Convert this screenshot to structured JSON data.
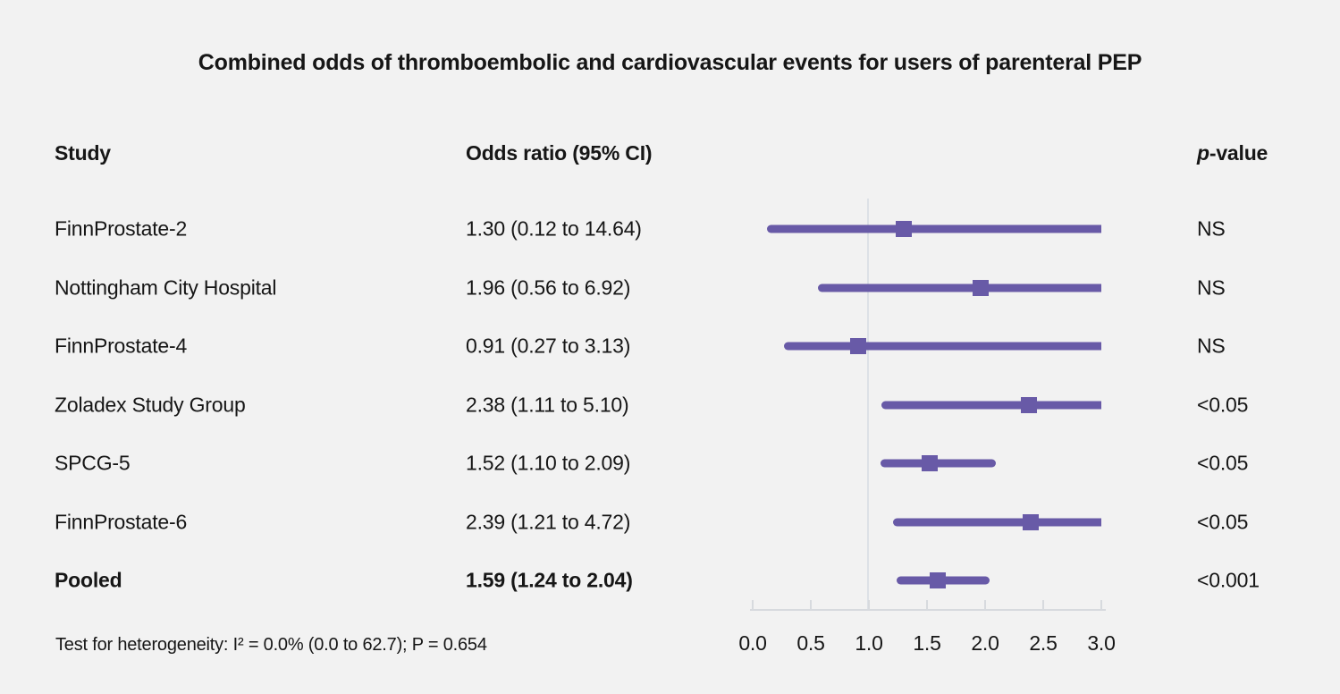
{
  "title": "Combined odds of thromboembolic and cardiovascular events for users of parenteral PEP",
  "columns": {
    "study": "Study",
    "odds_ratio": "Odds ratio (95% CI)",
    "p_value_italic": "p",
    "p_value_rest": "-value"
  },
  "footer": "Test for heterogeneity: I² = 0.0% (0.0 to 62.7); P = 0.654",
  "colors": {
    "background": "#f2f2f2",
    "marker_and_line": "#685aa7",
    "text": "#161616",
    "reference_line": "#dde1e6",
    "axis": "#d7dade"
  },
  "chart_data": {
    "type": "scatter",
    "subtype": "forest-plot",
    "title": "Combined odds of thromboembolic and cardiovascular events for users of parenteral PEP",
    "xlabel": "",
    "ylabel": "",
    "xlim": [
      0.0,
      3.0
    ],
    "xticks": [
      "0.0",
      "0.5",
      "1.0",
      "1.5",
      "2.0",
      "2.5",
      "3.0"
    ],
    "reference_value": 1.0,
    "clip_max": 3.0,
    "grid": false,
    "legend": "none",
    "rows": [
      {
        "study": "FinnProstate-2",
        "or": 1.3,
        "ci_low": 0.12,
        "ci_high": 14.64,
        "or_label": "1.30 (0.12 to 14.64)",
        "p_value": "NS",
        "pooled": false
      },
      {
        "study": "Nottingham City Hospital",
        "or": 1.96,
        "ci_low": 0.56,
        "ci_high": 6.92,
        "or_label": "1.96 (0.56 to 6.92)",
        "p_value": "NS",
        "pooled": false
      },
      {
        "study": "FinnProstate-4",
        "or": 0.91,
        "ci_low": 0.27,
        "ci_high": 3.13,
        "or_label": "0.91 (0.27 to 3.13)",
        "p_value": "NS",
        "pooled": false
      },
      {
        "study": "Zoladex Study Group",
        "or": 2.38,
        "ci_low": 1.11,
        "ci_high": 5.1,
        "or_label": "2.38 (1.11 to 5.10)",
        "p_value": "<0.05",
        "pooled": false
      },
      {
        "study": "SPCG-5",
        "or": 1.52,
        "ci_low": 1.1,
        "ci_high": 2.09,
        "or_label": "1.52 (1.10 to 2.09)",
        "p_value": "<0.05",
        "pooled": false
      },
      {
        "study": "FinnProstate-6",
        "or": 2.39,
        "ci_low": 1.21,
        "ci_high": 4.72,
        "or_label": "2.39 (1.21 to 4.72)",
        "p_value": "<0.05",
        "pooled": false
      },
      {
        "study": "Pooled",
        "or": 1.59,
        "ci_low": 1.24,
        "ci_high": 2.04,
        "or_label": "1.59 (1.24 to 2.04)",
        "p_value": "<0.001",
        "pooled": true
      }
    ]
  }
}
